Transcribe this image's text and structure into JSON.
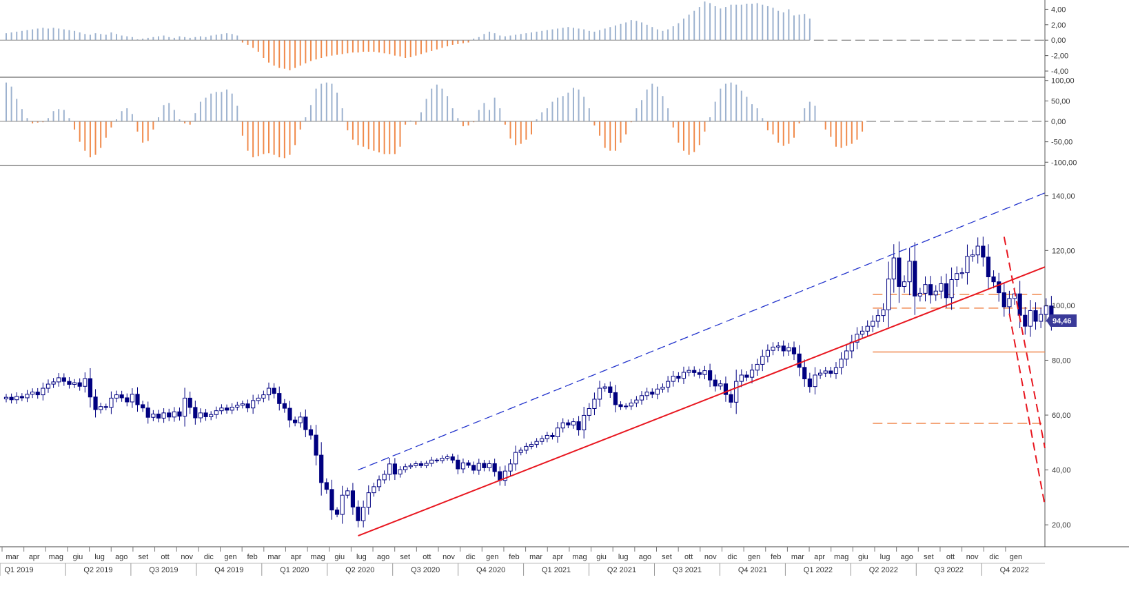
{
  "chart_data": [
    {
      "panel": "oscillator-top",
      "type": "bar",
      "y_ticks": [
        "4,00",
        "2,00",
        "0,00",
        "-2,00",
        "-4,00"
      ],
      "y_tick_values": [
        4,
        2,
        0,
        -2,
        -4
      ],
      "ylim": [
        -4.8,
        5.2
      ],
      "positive_color": "#9db2cf",
      "negative_color": "#f08a4b",
      "values": [
        0.9,
        1.0,
        1.1,
        1.2,
        1.3,
        1.4,
        1.5,
        1.6,
        1.5,
        1.6,
        1.5,
        1.4,
        1.3,
        1.2,
        1.0,
        0.8,
        0.7,
        0.9,
        0.8,
        0.7,
        1.0,
        0.8,
        0.6,
        0.5,
        0.4,
        0.1,
        0.2,
        0.3,
        0.4,
        0.5,
        0.6,
        0.4,
        0.3,
        0.5,
        0.4,
        0.3,
        0.4,
        0.5,
        0.4,
        0.6,
        0.7,
        0.8,
        0.9,
        0.8,
        0.6,
        -0.3,
        -0.6,
        -1.0,
        -1.5,
        -2.3,
        -2.9,
        -3.3,
        -3.6,
        -3.7,
        -3.9,
        -3.6,
        -3.3,
        -3.0,
        -2.7,
        -2.5,
        -2.3,
        -2.1,
        -2.0,
        -1.9,
        -1.8,
        -1.7,
        -1.6,
        -1.6,
        -1.5,
        -1.5,
        -1.5,
        -1.6,
        -1.7,
        -1.8,
        -2.0,
        -2.1,
        -2.3,
        -2.2,
        -2.0,
        -1.8,
        -1.6,
        -1.4,
        -1.2,
        -1.0,
        -0.8,
        -0.6,
        -0.5,
        -0.4,
        -0.3,
        0.2,
        0.4,
        0.8,
        1.1,
        0.9,
        0.6,
        0.5,
        0.6,
        0.7,
        0.8,
        0.9,
        1.0,
        1.1,
        1.2,
        1.3,
        1.4,
        1.5,
        1.6,
        1.7,
        1.6,
        1.5,
        1.4,
        1.2,
        1.1,
        1.3,
        1.5,
        1.7,
        1.9,
        2.1,
        2.3,
        2.6,
        2.5,
        2.3,
        2.0,
        1.7,
        1.4,
        1.2,
        1.4,
        1.8,
        2.2,
        2.8,
        3.3,
        3.8,
        4.3,
        5.0,
        4.8,
        4.4,
        4.1,
        4.3,
        4.6,
        4.6,
        4.6,
        4.7,
        4.7,
        4.8,
        4.6,
        4.4,
        4.2,
        3.8,
        3.6,
        4.0,
        3.2,
        3.3,
        3.4,
        2.8
      ]
    },
    {
      "panel": "oscillator-middle",
      "type": "bar",
      "y_ticks": [
        "100,00",
        "50,00",
        "0,00",
        "-50,00",
        "-100,00"
      ],
      "y_tick_values": [
        100,
        50,
        0,
        -50,
        -100
      ],
      "ylim": [
        -108,
        108
      ],
      "positive_color": "#9db2cf",
      "negative_color": "#f08a4b",
      "values": [
        95,
        85,
        55,
        30,
        8,
        -5,
        -3,
        -2,
        8,
        25,
        30,
        28,
        8,
        -20,
        -50,
        -72,
        -88,
        -82,
        -65,
        -40,
        -15,
        5,
        25,
        32,
        18,
        -25,
        -52,
        -48,
        -20,
        10,
        40,
        45,
        28,
        5,
        -5,
        -8,
        20,
        48,
        58,
        68,
        72,
        72,
        78,
        68,
        38,
        -35,
        -72,
        -88,
        -85,
        -80,
        -78,
        -82,
        -88,
        -90,
        -82,
        -58,
        -20,
        10,
        40,
        80,
        92,
        95,
        92,
        70,
        32,
        -22,
        -45,
        -58,
        -62,
        -68,
        -72,
        -76,
        -80,
        -80,
        -80,
        -62,
        -8,
        2,
        -8,
        22,
        55,
        80,
        90,
        80,
        62,
        32,
        8,
        -12,
        -10,
        -2,
        28,
        45,
        28,
        58,
        32,
        -8,
        -42,
        -58,
        -55,
        -45,
        -32,
        5,
        22,
        32,
        48,
        58,
        62,
        70,
        82,
        78,
        60,
        32,
        -10,
        -35,
        -65,
        -72,
        -72,
        -52,
        -32,
        -2,
        32,
        52,
        78,
        92,
        85,
        62,
        32,
        -15,
        -52,
        -72,
        -82,
        -75,
        -58,
        -25,
        10,
        48,
        80,
        92,
        95,
        90,
        75,
        60,
        42,
        32,
        8,
        -22,
        -32,
        -52,
        -60,
        -55,
        -40,
        -5,
        32,
        48,
        38,
        0,
        -20,
        -38,
        -62,
        -65,
        -60,
        -55,
        -45,
        -25
      ]
    },
    {
      "panel": "price",
      "type": "candlestick",
      "y_ticks": [
        "140,00",
        "120,00",
        "100,00",
        "80,00",
        "60,00",
        "40,00",
        "20,00"
      ],
      "y_tick_values": [
        140,
        120,
        100,
        80,
        60,
        40,
        20
      ],
      "ylim": [
        12,
        151
      ],
      "last_price_label": "94,46",
      "last_price": 94.46,
      "up_color": "#ffffff",
      "down_color": "#000080",
      "closes": [
        66.5,
        65.6,
        66.8,
        66.3,
        67.6,
        68.4,
        67.4,
        69.8,
        71.3,
        72.1,
        73.6,
        72.3,
        71.2,
        71.8,
        70.5,
        73.3,
        66.6,
        62.0,
        63.1,
        62.8,
        66.2,
        67.4,
        66.3,
        64.8,
        67.6,
        63.8,
        62.6,
        59.2,
        60.4,
        58.9,
        60.8,
        59.3,
        61.2,
        59.6,
        66.2,
        62.8,
        59.0,
        60.8,
        59.4,
        60.2,
        61.6,
        62.6,
        61.8,
        62.9,
        63.6,
        64.1,
        62.6,
        65.3,
        66.2,
        67.4,
        69.8,
        67.9,
        64.2,
        62.5,
        58.2,
        57.2,
        59.3,
        54.7,
        52.7,
        45.4,
        35.4,
        32.9,
        25.4,
        23.8,
        30.8,
        32.4,
        26.5,
        21.5,
        26.4,
        31.7,
        33.9,
        36.4,
        38.4,
        42.2,
        38.5,
        40.1,
        41.2,
        41.6,
        42.3,
        41.6,
        42.4,
        43.6,
        43.4,
        44.3,
        44.8,
        43.6,
        40.4,
        42.6,
        41.7,
        39.9,
        42.4,
        40.8,
        42.3,
        39.4,
        36.2,
        39.6,
        42.2,
        46.4,
        47.2,
        48.6,
        49.3,
        50.4,
        51.4,
        52.6,
        52.1,
        55.3,
        57.2,
        56.4,
        57.6,
        54.6,
        59.9,
        62.4,
        65.8,
        69.8,
        70.3,
        68.2,
        63.8,
        63.1,
        63.3,
        64.4,
        65.5,
        67.1,
        68.4,
        67.6,
        69.5,
        70.2,
        72.3,
        74.2,
        73.4,
        75.6,
        76.3,
        75.5,
        74.8,
        76.2,
        72.8,
        70.6,
        71.4,
        67.5,
        64.7,
        72.3,
        74.6,
        73.8,
        76.4,
        78.5,
        81.4,
        83.6,
        84.8,
        85.2,
        83.4,
        84.6,
        82.3,
        77.4,
        73.2,
        70.4,
        74.6,
        75.3,
        76.1,
        75.2,
        77.3,
        80.4,
        83.4,
        86.6,
        89.5,
        90.6,
        92.4,
        94.2,
        96.3,
        98.4,
        109.6,
        117.3,
        106.9,
        108.6,
        116.1,
        103.4,
        104.4,
        107.6,
        103.8,
        105.2,
        107.9,
        102.8,
        109.4,
        111.6,
        111.9,
        117.9,
        118.4,
        121.6,
        117.6,
        110.4,
        108.6,
        104.6,
        99.5,
        102.5,
        104.2,
        96.4,
        92.4,
        98.1,
        94.2,
        96.7,
        99.8,
        94.46
      ],
      "trendlines": [
        {
          "color": "#e8161f",
          "style": "solid",
          "p1": [
            67,
            16
          ],
          "p2": [
            219,
            114
          ]
        },
        {
          "color": "#2233cc",
          "style": "dashed",
          "p1": [
            67,
            40
          ],
          "p2": [
            219,
            141
          ]
        },
        {
          "color": "#e8161f",
          "style": "dashed",
          "p1": [
            190,
            125
          ],
          "p2": [
            219,
            48
          ]
        },
        {
          "color": "#e8161f",
          "style": "dashed",
          "p1": [
            191,
            97
          ],
          "p2": [
            219,
            27
          ]
        }
      ],
      "horizontal_levels": [
        {
          "value": 104.0,
          "color": "#f0884f",
          "style": "dashed"
        },
        {
          "value": 99.0,
          "color": "#f0884f",
          "style": "dashed"
        },
        {
          "value": 83.0,
          "color": "#f0884f",
          "style": "solid"
        },
        {
          "value": 57.0,
          "color": "#f0884f",
          "style": "dashed"
        }
      ]
    }
  ],
  "x_axis": {
    "months": [
      "mar",
      "apr",
      "mag",
      "giu",
      "lug",
      "ago",
      "set",
      "ott",
      "nov",
      "dic",
      "gen",
      "feb",
      "mar",
      "apr",
      "mag",
      "giu",
      "lug",
      "ago",
      "set",
      "ott",
      "nov",
      "dic",
      "gen",
      "feb",
      "mar",
      "apr",
      "mag",
      "giu",
      "lug",
      "ago",
      "set",
      "ott",
      "nov",
      "dic",
      "gen",
      "feb",
      "mar",
      "apr",
      "mag",
      "giu",
      "lug",
      "ago",
      "set",
      "ott",
      "nov",
      "dic",
      "gen"
    ],
    "quarters": [
      "Q1 2019",
      "Q2 2019",
      "Q3 2019",
      "Q4 2019",
      "Q1 2020",
      "Q2 2020",
      "Q3 2020",
      "Q4 2020",
      "Q1 2021",
      "Q2 2021",
      "Q3 2021",
      "Q4 2021",
      "Q1 2022",
      "Q2 2022",
      "Q3 2022",
      "Q4 2022"
    ]
  }
}
